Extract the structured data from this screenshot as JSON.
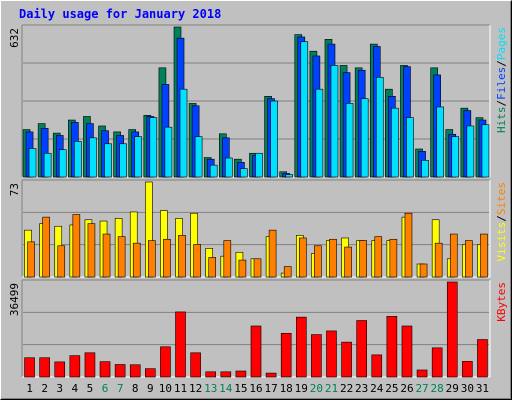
{
  "chart_data": {
    "type": "bar",
    "title": "Daily usage for January 2018",
    "categories": [
      "1",
      "2",
      "3",
      "4",
      "5",
      "6",
      "7",
      "8",
      "9",
      "10",
      "11",
      "12",
      "13",
      "14",
      "15",
      "16",
      "17",
      "18",
      "19",
      "20",
      "21",
      "22",
      "23",
      "24",
      "25",
      "26",
      "27",
      "28",
      "29",
      "30",
      "31"
    ],
    "weekend_days": [
      "6",
      "7",
      "13",
      "14",
      "20",
      "21",
      "27",
      "28"
    ],
    "colors": {
      "background": "#c0c0c0",
      "hits": "#00805c",
      "files": "#0040ff",
      "pages": "#00e0ff",
      "visits": "#ffff00",
      "sites": "#ff8000",
      "kbytes": "#ff0000",
      "weekday_label": "#000000",
      "weekend_label": "#00805c",
      "title": "#0000ff",
      "gridline": "#808080"
    },
    "panels": [
      {
        "id": "hits-files-pages",
        "ymax_label": "632",
        "ylim": [
          0,
          632
        ],
        "side_labels": [
          {
            "text": "Pages",
            "color": "#00e0ff"
          },
          {
            "text": "/",
            "color": "#000000"
          },
          {
            "text": "Files",
            "color": "#0040ff"
          },
          {
            "text": "/",
            "color": "#000000"
          },
          {
            "text": "Hits",
            "color": "#00805c"
          }
        ],
        "series": [
          {
            "key": "hits",
            "values": [
              200,
              225,
              185,
              240,
              255,
              215,
              190,
              200,
              260,
              460,
              632,
              310,
              82,
              182,
              75,
              100,
              340,
              22,
              600,
              530,
              580,
              470,
              460,
              560,
              370,
              470,
              118,
              460,
              200,
              290,
              250
            ]
          },
          {
            "key": "files",
            "values": [
              190,
              205,
              175,
              230,
              225,
              195,
              175,
              190,
              255,
              390,
              585,
              300,
              75,
              165,
              62,
              90,
              330,
              15,
              590,
              510,
              560,
              440,
              450,
              550,
              340,
              465,
              108,
              430,
              180,
              280,
              240
            ]
          },
          {
            "key": "pages",
            "values": [
              120,
              100,
              115,
              150,
              165,
              140,
              140,
              170,
              250,
              210,
              370,
              170,
              50,
              80,
              35,
              100,
              320,
              10,
              570,
              370,
              470,
              310,
              330,
              420,
              290,
              250,
              70,
              295,
              170,
              215,
              220
            ]
          }
        ]
      },
      {
        "id": "visits-sites",
        "ymax_label": "73",
        "ylim": [
          0,
          73
        ],
        "side_labels": [
          {
            "text": "Sites",
            "color": "#ff8000"
          },
          {
            "text": "/",
            "color": "#000000"
          },
          {
            "text": "Visits",
            "color": "#ffff00"
          }
        ],
        "series": [
          {
            "key": "visits",
            "values": [
              36,
              41,
              39,
              40,
              44,
              43,
              45,
              50,
              73,
              51,
              45,
              49,
              22,
              16,
              19,
              14,
              31,
              3,
              32,
              18,
              28,
              30,
              28,
              28,
              28,
              46,
              10,
              44,
              14,
              25,
              25
            ]
          },
          {
            "key": "sites",
            "values": [
              27,
              46,
              24,
              48,
              41,
              33,
              31,
              26,
              28,
              29,
              32,
              25,
              15,
              28,
              13,
              14,
              36,
              8,
              30,
              24,
              29,
              23,
              28,
              31,
              29,
              49,
              10,
              26,
              33,
              28,
              33
            ]
          }
        ]
      },
      {
        "id": "kbytes",
        "ymax_label": "36499",
        "ylim": [
          0,
          36499
        ],
        "side_labels": [
          {
            "text": "KBytes",
            "color": "#ff0000"
          }
        ],
        "series": [
          {
            "key": "kbytes",
            "values": [
              7400,
              7400,
              5800,
              8200,
              9300,
              5900,
              4800,
              4700,
              3200,
              11600,
              25000,
              9300,
              2000,
              2000,
              2300,
              19600,
              1500,
              16800,
              23000,
              16300,
              17700,
              13400,
              21700,
              8500,
              23300,
              19600,
              2700,
              11200,
              37000,
              6000,
              14400
            ]
          }
        ]
      }
    ]
  }
}
